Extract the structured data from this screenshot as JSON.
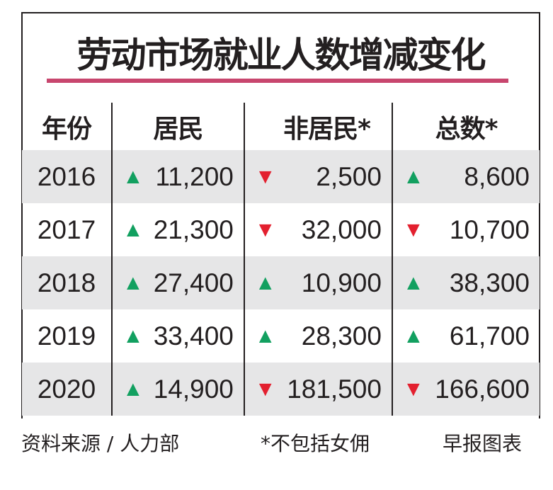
{
  "title": "劳动市场就业人数增减变化",
  "colors": {
    "up": "#12a060",
    "down": "#e3202f",
    "accent_rule": "#c8466e",
    "row_shade": "#e6e6e7"
  },
  "chart_data": {
    "type": "table",
    "columns": [
      "年份",
      "居民",
      "非居民*",
      "总数*"
    ],
    "rows": [
      {
        "year": "2016",
        "cells": [
          {
            "dir": "up",
            "value": "11,200"
          },
          {
            "dir": "down",
            "value": "2,500"
          },
          {
            "dir": "up",
            "value": "8,600"
          }
        ]
      },
      {
        "year": "2017",
        "cells": [
          {
            "dir": "up",
            "value": "21,300"
          },
          {
            "dir": "down",
            "value": "32,000"
          },
          {
            "dir": "down",
            "value": "10,700"
          }
        ]
      },
      {
        "year": "2018",
        "cells": [
          {
            "dir": "up",
            "value": "27,400"
          },
          {
            "dir": "up",
            "value": "10,900"
          },
          {
            "dir": "up",
            "value": "38,300"
          }
        ]
      },
      {
        "year": "2019",
        "cells": [
          {
            "dir": "up",
            "value": "33,400"
          },
          {
            "dir": "up",
            "value": "28,300"
          },
          {
            "dir": "up",
            "value": "61,700"
          }
        ]
      },
      {
        "year": "2020",
        "cells": [
          {
            "dir": "up",
            "value": "14,900"
          },
          {
            "dir": "down",
            "value": "181,500"
          },
          {
            "dir": "down",
            "value": "166,600"
          }
        ]
      }
    ]
  },
  "footer": {
    "source": "资料来源 / 人力部",
    "note": "*不包括女佣",
    "credit": "早报图表"
  }
}
